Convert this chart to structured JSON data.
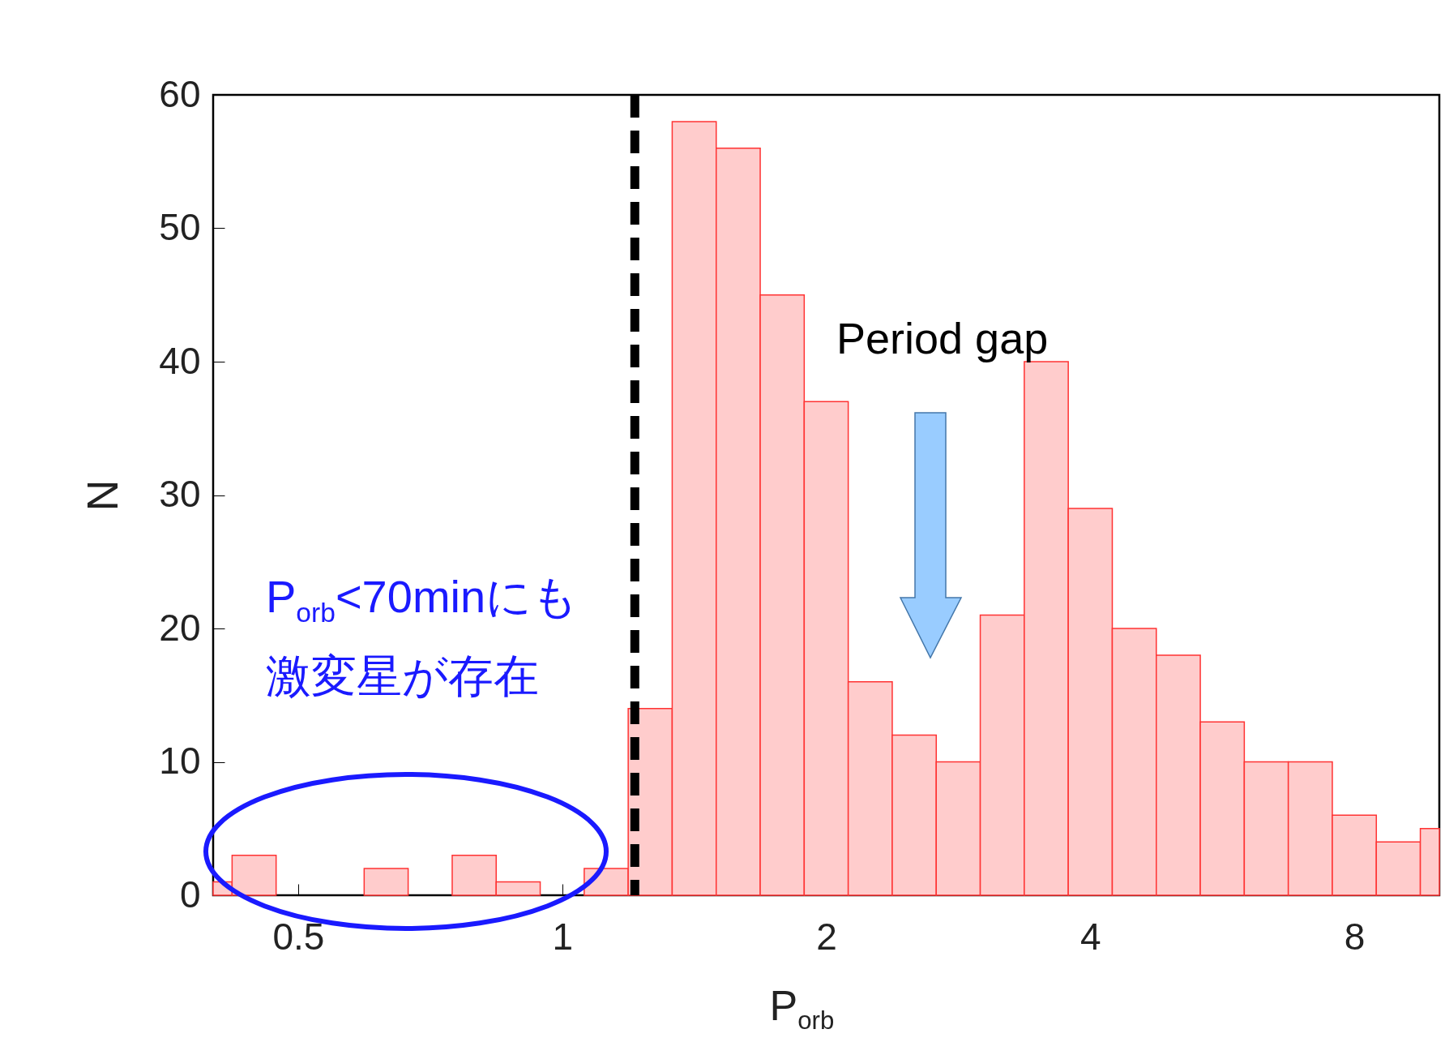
{
  "chart_data": {
    "type": "histogram",
    "xlabel": "P$_{orb}$",
    "ylabel": "N",
    "bins": [
      0.4,
      0.4204,
      0.4719,
      0.5946,
      0.6674,
      0.7492,
      0.8409,
      0.9439,
      1.0595,
      1.1892,
      1.3348,
      1.4983,
      1.6818,
      1.8877,
      2.1189,
      2.3784,
      2.6697,
      2.9966,
      3.3636,
      3.7755,
      4.2379,
      4.7568,
      5.3394,
      5.9932,
      6.7272,
      7.551,
      8.4758,
      9.5137,
      10
    ],
    "values": [
      1,
      3,
      0,
      2,
      0,
      3,
      1,
      0,
      2,
      14,
      58,
      56,
      45,
      37,
      16,
      12,
      10,
      21,
      40,
      29,
      20,
      18,
      13,
      10,
      10,
      6,
      4,
      5
    ],
    "color": "#ffcccc",
    "xlim": [
      0.4,
      10
    ],
    "xticks": [
      0.5,
      1,
      2,
      4,
      8
    ],
    "ylim": [
      0,
      60
    ],
    "yticks": [
      0,
      10,
      20,
      30,
      40,
      50,
      60
    ],
    "log": "x",
    "ref_lines": [
      {
        "axis": "x",
        "value": 1.21,
        "color": "#000000",
        "line_style": "dashed"
      }
    ],
    "annotations": [
      "Period gap",
      "P$_{orb}$<70minにも",
      "激変星が存在"
    ]
  }
}
